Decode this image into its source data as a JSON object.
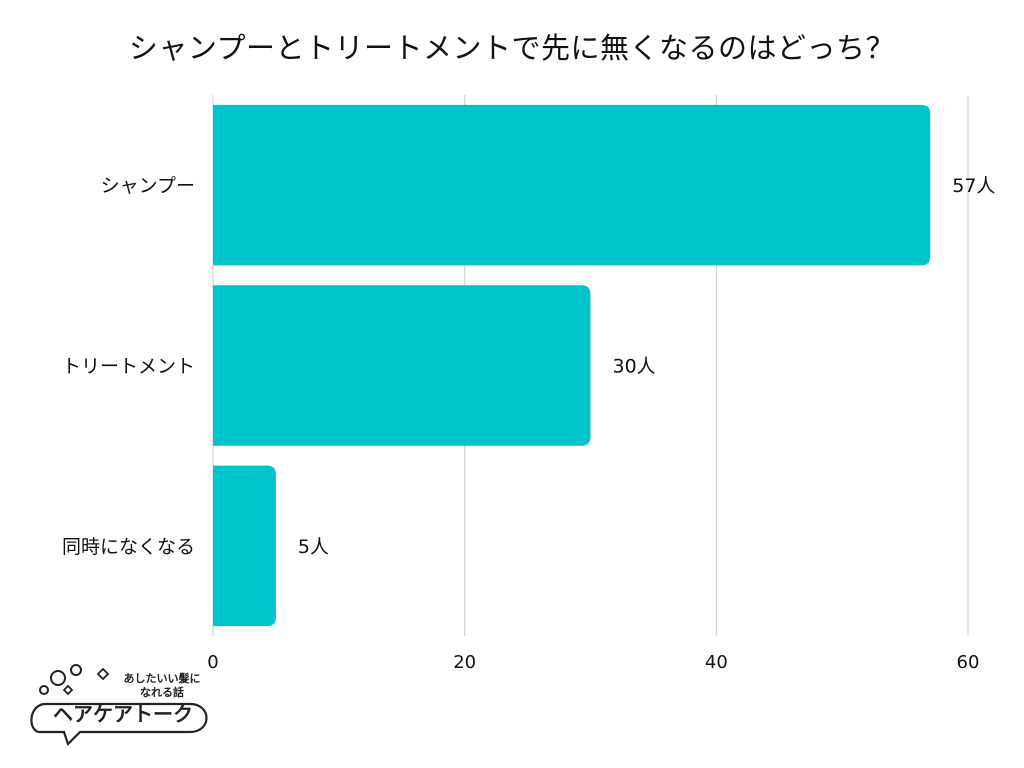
{
  "chart_data": {
    "type": "bar",
    "orientation": "horizontal",
    "title": "シャンプーとトリートメントで先に無くなるのはどっち？",
    "categories": [
      "シャンプー",
      "トリートメント",
      "同時になくなる"
    ],
    "values": [
      57,
      30,
      5
    ],
    "value_labels": [
      "57人",
      "30人",
      "5人"
    ],
    "xlim": [
      0,
      60
    ],
    "xticks": [
      0,
      20,
      40,
      60
    ],
    "grid": true,
    "bar_color": "#00c4cc",
    "grid_color": "#cccccc"
  },
  "logo": {
    "tagline_1": "あしたいい髪に",
    "tagline_2": "なれる話",
    "name": "ヘアケアトーク"
  }
}
